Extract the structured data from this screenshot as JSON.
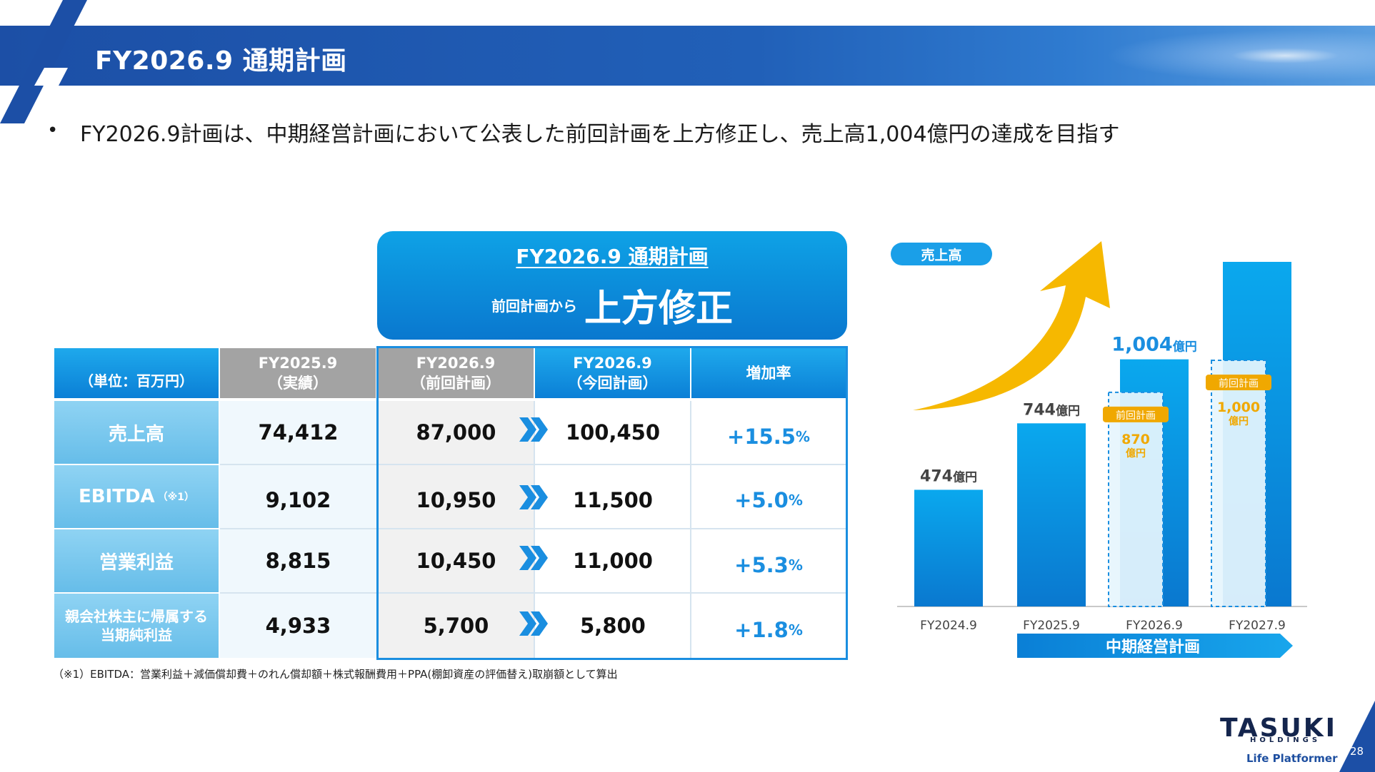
{
  "header": {
    "title": "FY2026.9 通期計画"
  },
  "bullet": {
    "text": "FY2026.9計画は、中期経営計画において公表した前回計画を上方修正し、売上高1,004億円の達成を目指す"
  },
  "highlight": {
    "title": "FY2026.9 通期計画",
    "sub_small": "前回計画から",
    "sub_big": "上方修正"
  },
  "table": {
    "unit_label": "（単位：百万円）",
    "headers": [
      {
        "line1": "FY2025.9",
        "line2": "（実績）"
      },
      {
        "line1": "FY2026.9",
        "line2": "（前回計画）"
      },
      {
        "line1": "FY2026.9",
        "line2": "（今回計画）"
      },
      {
        "line1": "増加率",
        "line2": ""
      }
    ],
    "rows": [
      {
        "label": "売上高",
        "note": "",
        "actual": "74,412",
        "prev": "87,000",
        "curr": "100,450",
        "rate": "+15.5",
        "pct": "%"
      },
      {
        "label": "EBITDA",
        "note": "（※1）",
        "actual": "9,102",
        "prev": "10,950",
        "curr": "11,500",
        "rate": "+5.0",
        "pct": "%"
      },
      {
        "label": "営業利益",
        "note": "",
        "actual": "8,815",
        "prev": "10,450",
        "curr": "11,000",
        "rate": "+5.3",
        "pct": "%"
      },
      {
        "label": "親会社株主に帰属する",
        "label2": "当期純利益",
        "note": "",
        "actual": "4,933",
        "prev": "5,700",
        "curr": "5,800",
        "rate": "+1.8",
        "pct": "%"
      }
    ],
    "footnote": "（※1）EBITDA：営業利益＋減価償却費＋のれん償却額＋株式報酬費用＋PPA(棚卸資産の評価替え)取崩額として算出"
  },
  "chart_data": {
    "type": "bar",
    "pill_label": "売上高",
    "categories": [
      "FY2024.9",
      "FY2025.9",
      "FY2026.9",
      "FY2027.9"
    ],
    "values": [
      474,
      744,
      1004,
      1400
    ],
    "value_labels": [
      "474",
      "744",
      "1,004",
      ""
    ],
    "unit": "億円",
    "previous_plan": {
      "label": "前回計画",
      "categories": [
        "FY2026.9",
        "FY2027.9"
      ],
      "values": [
        870,
        1000
      ],
      "value_labels": [
        "870",
        "1,000"
      ],
      "unit": "億円"
    },
    "midterm_plan_label": "中期経営計画",
    "colors": {
      "bar": "#0a96e2",
      "prev_plan": "#f0a800",
      "arrow": "#f6b800"
    }
  },
  "footer": {
    "logo": "TASUKI",
    "holdings": "HOLDINGS",
    "tagline": "Life Platformer",
    "page": "28"
  }
}
